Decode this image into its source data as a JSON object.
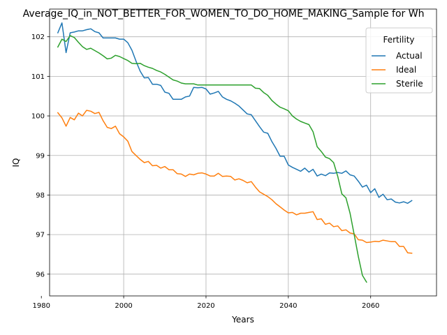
{
  "chart_data": {
    "type": "line",
    "title": "Average_IQ_in_NOT_BETTER_FOR_WOMEN_TO_DO_HOME_MAKING_Sample for Wh",
    "xlabel": "Years",
    "ylabel": "IQ",
    "xlim": [
      1982,
      2076
    ],
    "ylim": [
      95.45,
      102.7
    ],
    "xticks": [
      1980,
      2000,
      2020,
      2040,
      2060
    ],
    "yticks": [
      96,
      97,
      98,
      99,
      100,
      101,
      102
    ],
    "grid": true,
    "legend": {
      "title": "Fertility",
      "placement": "top-right"
    },
    "series": [
      {
        "name": "Actual",
        "color": "#1f77b4",
        "x": [
          1984,
          1985,
          1986,
          1987,
          1988,
          1989,
          1990,
          1991,
          1992,
          1993,
          1994,
          1995,
          1996,
          1997,
          1998,
          1999,
          2000,
          2001,
          2002,
          2003,
          2004,
          2005,
          2006,
          2007,
          2008,
          2009,
          2010,
          2011,
          2012,
          2013,
          2014,
          2015,
          2016,
          2017,
          2018,
          2019,
          2020,
          2021,
          2022,
          2023,
          2024,
          2025,
          2026,
          2027,
          2028,
          2029,
          2030,
          2031,
          2032,
          2033,
          2034,
          2035,
          2036,
          2037,
          2038,
          2039,
          2040,
          2041,
          2042,
          2043,
          2044,
          2045,
          2046,
          2047,
          2048,
          2049,
          2050,
          2051,
          2052,
          2053,
          2054,
          2055,
          2056,
          2057,
          2058,
          2059,
          2060,
          2061,
          2062,
          2063,
          2064,
          2065,
          2066,
          2067,
          2068,
          2069,
          2070
        ],
        "values": [
          102.1,
          102.35,
          101.6,
          102.1,
          102.12,
          102.15,
          102.15,
          102.18,
          102.2,
          102.13,
          102.1,
          101.97,
          101.97,
          101.97,
          101.97,
          101.94,
          101.94,
          101.85,
          101.66,
          101.38,
          101.13,
          100.96,
          100.97,
          100.8,
          100.8,
          100.77,
          100.6,
          100.57,
          100.42,
          100.42,
          100.42,
          100.48,
          100.5,
          100.72,
          100.71,
          100.72,
          100.68,
          100.55,
          100.58,
          100.62,
          100.48,
          100.42,
          100.38,
          100.32,
          100.25,
          100.15,
          100.05,
          100.03,
          99.88,
          99.73,
          99.59,
          99.56,
          99.35,
          99.18,
          98.98,
          98.98,
          98.76,
          98.7,
          98.65,
          98.6,
          98.68,
          98.58,
          98.65,
          98.48,
          98.53,
          98.49,
          98.56,
          98.55,
          98.57,
          98.55,
          98.61,
          98.51,
          98.48,
          98.35,
          98.2,
          98.25,
          98.06,
          98.16,
          97.94,
          98.02,
          97.88,
          97.9,
          97.82,
          97.8,
          97.83,
          97.79,
          97.86
        ]
      },
      {
        "name": "Ideal",
        "color": "#ff7f0e",
        "x": [
          1984,
          1985,
          1986,
          1987,
          1988,
          1989,
          1990,
          1991,
          1992,
          1993,
          1994,
          1995,
          1996,
          1997,
          1998,
          1999,
          2000,
          2001,
          2002,
          2003,
          2004,
          2005,
          2006,
          2007,
          2008,
          2009,
          2010,
          2011,
          2012,
          2013,
          2014,
          2015,
          2016,
          2017,
          2018,
          2019,
          2020,
          2021,
          2022,
          2023,
          2024,
          2025,
          2026,
          2027,
          2028,
          2029,
          2030,
          2031,
          2032,
          2033,
          2034,
          2035,
          2036,
          2037,
          2038,
          2039,
          2040,
          2041,
          2042,
          2043,
          2044,
          2045,
          2046,
          2047,
          2048,
          2049,
          2050,
          2051,
          2052,
          2053,
          2054,
          2055,
          2056,
          2057,
          2058,
          2059,
          2060,
          2061,
          2062,
          2063,
          2064,
          2065,
          2066,
          2067,
          2068,
          2069,
          2070
        ],
        "values": [
          100.08,
          99.95,
          99.74,
          99.96,
          99.9,
          100.07,
          100.0,
          100.14,
          100.12,
          100.06,
          100.09,
          99.88,
          99.71,
          99.68,
          99.74,
          99.55,
          99.47,
          99.36,
          99.1,
          99.0,
          98.9,
          98.82,
          98.85,
          98.74,
          98.75,
          98.68,
          98.72,
          98.64,
          98.64,
          98.54,
          98.53,
          98.47,
          98.53,
          98.51,
          98.55,
          98.56,
          98.53,
          98.48,
          98.48,
          98.55,
          98.47,
          98.48,
          98.47,
          98.38,
          98.41,
          98.37,
          98.31,
          98.34,
          98.2,
          98.08,
          98.02,
          97.96,
          97.88,
          97.78,
          97.7,
          97.62,
          97.55,
          97.56,
          97.5,
          97.54,
          97.54,
          97.56,
          97.58,
          97.38,
          97.4,
          97.26,
          97.29,
          97.2,
          97.22,
          97.1,
          97.12,
          97.04,
          97.02,
          96.87,
          96.86,
          96.8,
          96.81,
          96.83,
          96.82,
          96.86,
          96.84,
          96.82,
          96.82,
          96.7,
          96.7,
          96.54,
          96.53
        ]
      },
      {
        "name": "Sterile",
        "color": "#2ca02c",
        "x": [
          1984,
          1985,
          1986,
          1987,
          1988,
          1989,
          1990,
          1991,
          1992,
          1993,
          1994,
          1995,
          1996,
          1997,
          1998,
          1999,
          2000,
          2001,
          2002,
          2003,
          2004,
          2005,
          2006,
          2007,
          2008,
          2009,
          2010,
          2011,
          2012,
          2013,
          2014,
          2015,
          2016,
          2017,
          2018,
          2019,
          2020,
          2021,
          2022,
          2023,
          2024,
          2025,
          2026,
          2027,
          2028,
          2029,
          2030,
          2031,
          2032,
          2033,
          2034,
          2035,
          2036,
          2037,
          2038,
          2039,
          2040,
          2041,
          2042,
          2043,
          2044,
          2045,
          2046,
          2047,
          2048,
          2049,
          2050,
          2051,
          2052,
          2053,
          2054,
          2055,
          2056,
          2057,
          2058,
          2059
        ],
        "values": [
          101.74,
          101.94,
          101.88,
          102.03,
          101.98,
          101.86,
          101.75,
          101.68,
          101.71,
          101.65,
          101.59,
          101.52,
          101.44,
          101.46,
          101.53,
          101.5,
          101.45,
          101.4,
          101.33,
          101.32,
          101.33,
          101.27,
          101.23,
          101.2,
          101.15,
          101.11,
          101.05,
          100.98,
          100.91,
          100.88,
          100.83,
          100.81,
          100.81,
          100.81,
          100.78,
          100.78,
          100.78,
          100.78,
          100.78,
          100.78,
          100.78,
          100.78,
          100.78,
          100.78,
          100.78,
          100.78,
          100.78,
          100.78,
          100.7,
          100.69,
          100.59,
          100.52,
          100.39,
          100.3,
          100.22,
          100.18,
          100.13,
          100.0,
          99.92,
          99.86,
          99.82,
          99.78,
          99.6,
          99.22,
          99.1,
          98.96,
          98.92,
          98.82,
          98.47,
          98.03,
          97.93,
          97.54,
          97.0,
          96.45,
          95.97,
          95.8
        ]
      }
    ]
  }
}
